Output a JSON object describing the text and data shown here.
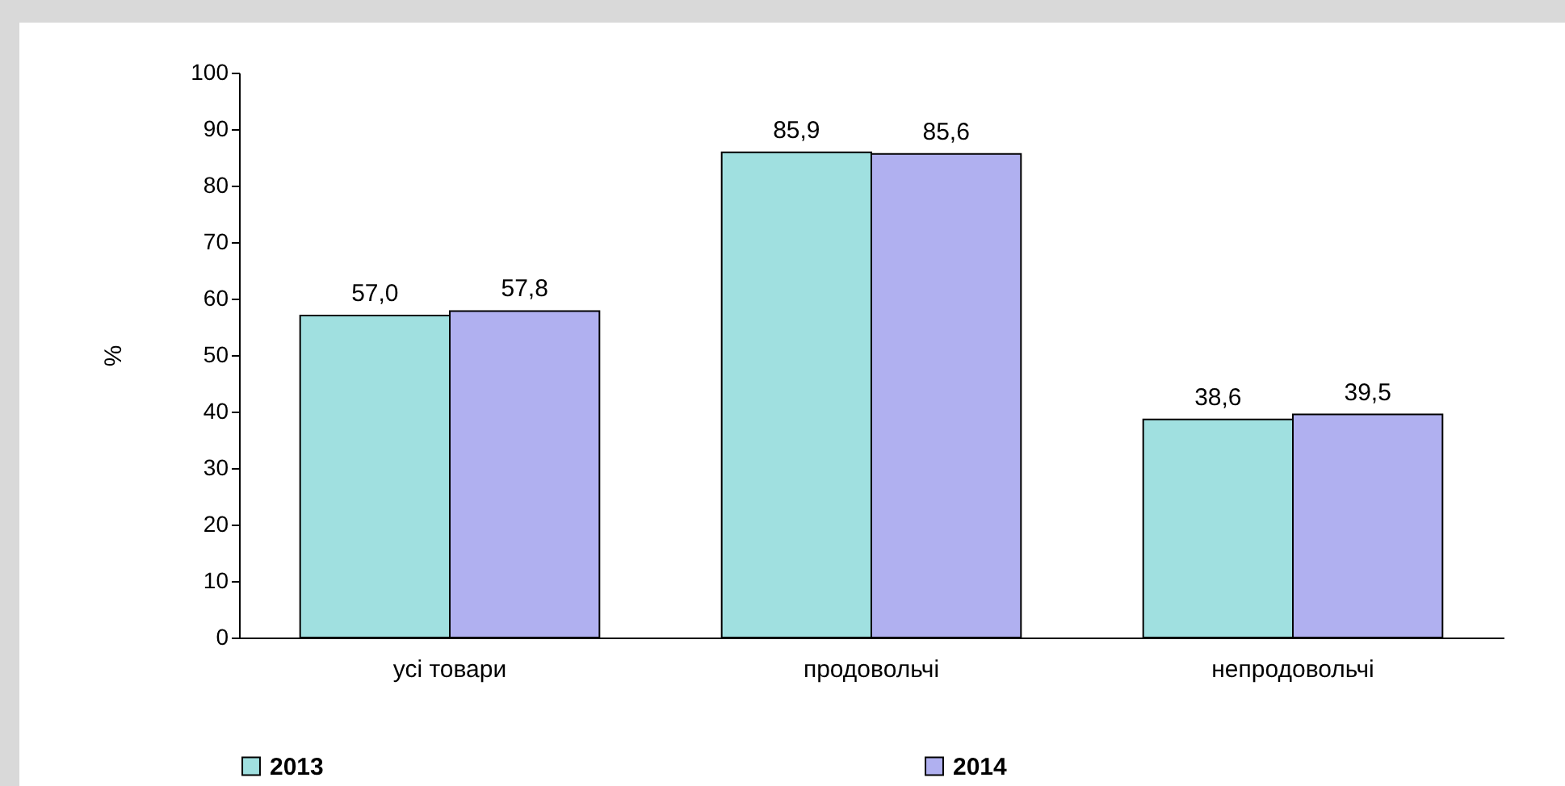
{
  "chart_data": {
    "type": "bar",
    "ylabel": "%",
    "categories": [
      "усі товари",
      "продовольчі",
      "непродовольчі"
    ],
    "series": [
      {
        "name": "2013",
        "color": "#a0e0e0",
        "values": [
          57.0,
          85.9,
          38.6
        ],
        "value_labels": [
          "57,0",
          "85,9",
          "38,6"
        ]
      },
      {
        "name": "2014",
        "color": "#b0b0f0",
        "values": [
          57.8,
          85.6,
          39.5
        ],
        "value_labels": [
          "57,8",
          "85,6",
          "39,5"
        ]
      }
    ],
    "ylim": [
      0,
      100
    ],
    "yticks": [
      0,
      10,
      20,
      30,
      40,
      50,
      60,
      70,
      80,
      90,
      100
    ],
    "grid": false,
    "legend": "bottom"
  }
}
